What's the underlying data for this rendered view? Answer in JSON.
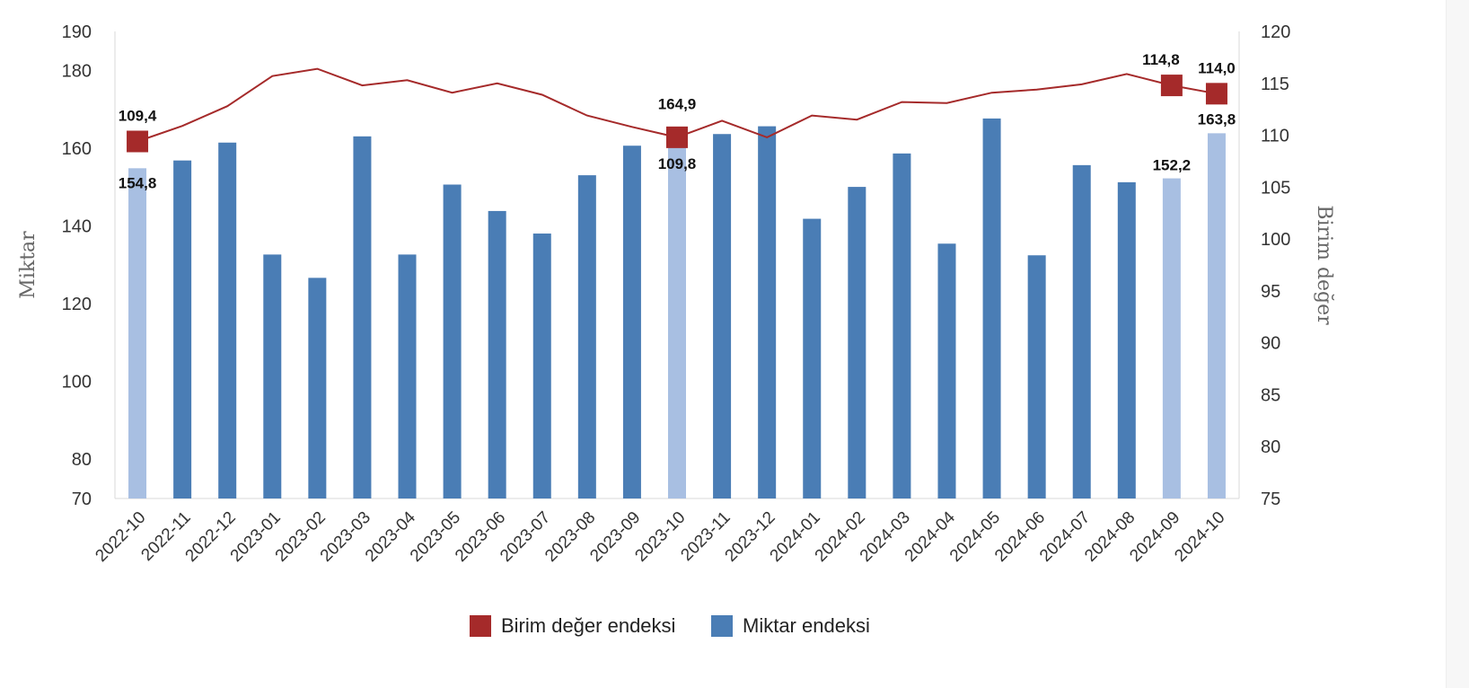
{
  "chart_data": {
    "type": "bar+line",
    "categories": [
      "2022-10",
      "2022-11",
      "2022-12",
      "2023-01",
      "2023-02",
      "2023-03",
      "2023-04",
      "2023-05",
      "2023-06",
      "2023-07",
      "2023-08",
      "2023-09",
      "2023-10",
      "2023-11",
      "2023-12",
      "2024-01",
      "2024-02",
      "2024-03",
      "2024-04",
      "2024-05",
      "2024-06",
      "2024-07",
      "2024-08",
      "2024-09",
      "2024-10"
    ],
    "left_axis": {
      "label": "Miktar",
      "ticks": [
        70,
        80,
        100,
        120,
        140,
        160,
        180,
        190
      ],
      "range": [
        70,
        190
      ]
    },
    "right_axis": {
      "label": "Birim değer",
      "ticks": [
        75,
        80,
        85,
        90,
        95,
        100,
        105,
        110,
        115,
        120
      ],
      "range": [
        75,
        120
      ]
    },
    "series": [
      {
        "name": "Miktar endeksi",
        "type": "bar",
        "axis": "left",
        "color": "#4a7db5",
        "highlight_color": "#a8bfe2",
        "highlighted": [
          "2022-10",
          "2023-10",
          "2024-09",
          "2024-10"
        ],
        "values": [
          154.8,
          156.8,
          161.4,
          132.6,
          126.6,
          163.0,
          132.6,
          150.6,
          143.8,
          138.0,
          153.0,
          160.6,
          164.9,
          163.6,
          165.6,
          141.8,
          150.0,
          158.6,
          135.4,
          167.6,
          132.4,
          155.6,
          151.2,
          152.2,
          163.8
        ]
      },
      {
        "name": "Birim değer endeksi",
        "type": "line",
        "axis": "right",
        "color": "#a52a2a",
        "markers_at": [
          "2022-10",
          "2023-10",
          "2024-09",
          "2024-10"
        ],
        "values": [
          109.4,
          110.9,
          112.8,
          115.7,
          116.4,
          114.8,
          115.3,
          114.1,
          115.0,
          113.9,
          111.9,
          110.8,
          109.8,
          111.4,
          109.8,
          111.9,
          111.5,
          113.2,
          113.1,
          114.1,
          114.4,
          114.9,
          115.9,
          114.8,
          114.0
        ]
      }
    ],
    "data_labels": [
      {
        "category": "2022-10",
        "series": "Birim değer endeksi",
        "text": "109,4"
      },
      {
        "category": "2022-10",
        "series": "Miktar endeksi",
        "text": "154,8"
      },
      {
        "category": "2023-10",
        "series": "Miktar endeksi",
        "text": "164,9"
      },
      {
        "category": "2023-10",
        "series": "Birim değer endeksi",
        "text": "109,8"
      },
      {
        "category": "2024-09",
        "series": "Birim değer endeksi",
        "text": "114,8"
      },
      {
        "category": "2024-09",
        "series": "Miktar endeksi",
        "text": "152,2"
      },
      {
        "category": "2024-10",
        "series": "Birim değer endeksi",
        "text": "114,0"
      },
      {
        "category": "2024-10",
        "series": "Miktar endeksi",
        "text": "163,8"
      }
    ],
    "legend": {
      "position": "bottom",
      "entries": [
        {
          "label": "Birim değer endeksi",
          "color": "#a52a2a"
        },
        {
          "label": "Miktar endeksi",
          "color": "#4a7db5"
        }
      ]
    },
    "grid": false
  }
}
